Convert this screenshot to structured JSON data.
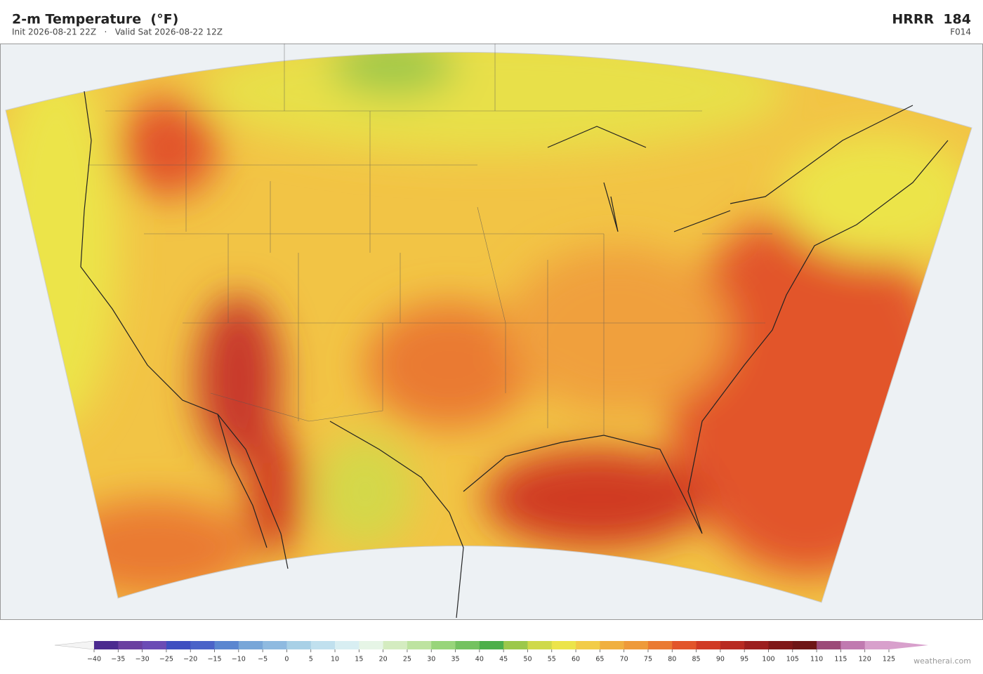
{
  "header": {
    "title": "2-m Temperature  (°F)",
    "subtitle": "Init 2026-08-21 22Z   ·   Valid Sat 2026-08-22 12Z",
    "model": "HRRR  184",
    "forecast_hour": "F014"
  },
  "colorbar": {
    "ticks": [
      {
        "value": -40,
        "label": "−40"
      },
      {
        "value": -35,
        "label": "−35"
      },
      {
        "value": -30,
        "label": "−30"
      },
      {
        "value": -25,
        "label": "−25"
      },
      {
        "value": -20,
        "label": "−20"
      },
      {
        "value": -15,
        "label": "−15"
      },
      {
        "value": -10,
        "label": "−10"
      },
      {
        "value": -5,
        "label": "−5"
      },
      0,
      5,
      10,
      15,
      20,
      25,
      30,
      35,
      40,
      45,
      50,
      55,
      60,
      65,
      70,
      75,
      80,
      85,
      90,
      95,
      100,
      105,
      110,
      115,
      120,
      125
    ],
    "colors": [
      "#4b2a8f",
      "#6a3fa0",
      "#6b4bb5",
      "#3f4fc0",
      "#4a63c8",
      "#5a86d0",
      "#78a6d8",
      "#8fbae0",
      "#a8d0e6",
      "#c0e0ee",
      "#d8eef2",
      "#e6f5e6",
      "#d4ecc0",
      "#bde3a0",
      "#98d57a",
      "#74c260",
      "#4caf4a",
      "#9cc84a",
      "#cfd94a",
      "#ece44a",
      "#f2cc48",
      "#f0b040",
      "#ee9a3a",
      "#ea7a32",
      "#e2552a",
      "#d03a24",
      "#b82a22",
      "#9c1e1e",
      "#801818",
      "#6e1616",
      "#9c4a78",
      "#c07ab0",
      "#d8a0cc"
    ],
    "under_color": "#f4f4f4",
    "over_color": "#d8a0cc"
  },
  "watermark": "weatherai.com"
}
